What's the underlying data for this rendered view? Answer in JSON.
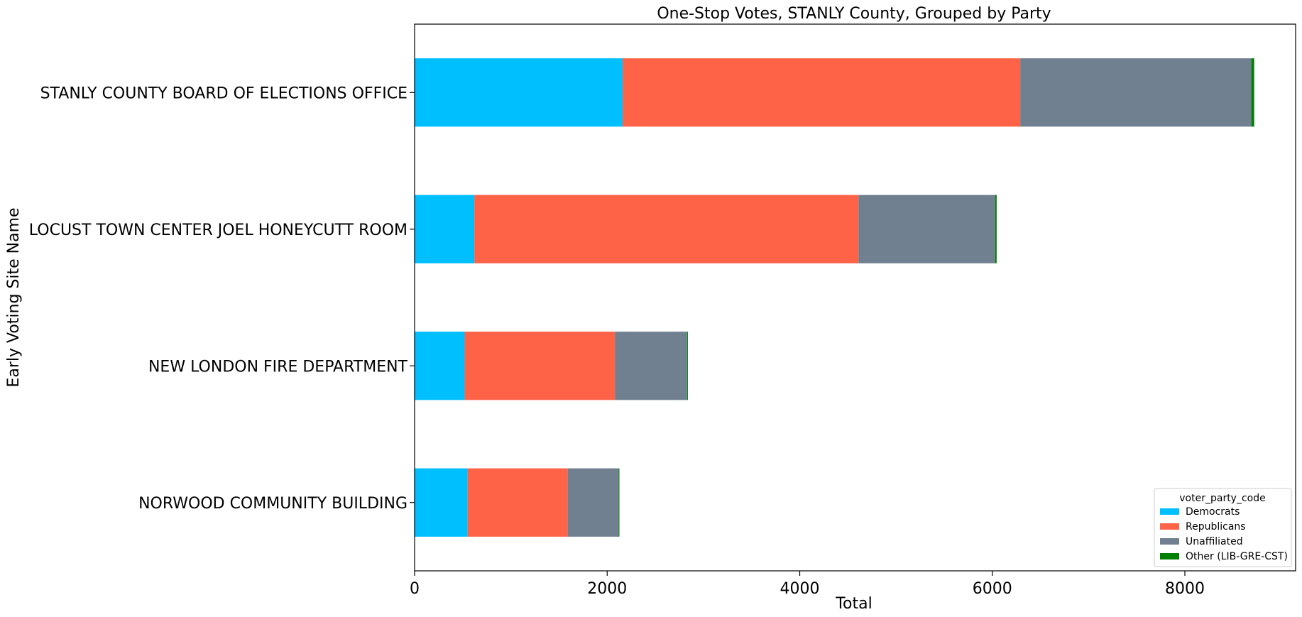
{
  "chart_data": {
    "type": "bar",
    "orientation": "horizontal",
    "stacked": true,
    "title": "One-Stop Votes, STANLY County, Grouped by Party",
    "xlabel": "Total",
    "ylabel": "Early Voting Site Name",
    "xlim": [
      0,
      9150
    ],
    "xticks": [
      0,
      2000,
      4000,
      6000,
      8000
    ],
    "grid": false,
    "legend_title": "voter_party_code",
    "legend_position": "lower-right",
    "categories": [
      "STANLY COUNTY BOARD OF ELECTIONS OFFICE",
      "LOCUST TOWN CENTER JOEL HONEYCUTT ROOM",
      "NEW LONDON FIRE DEPARTMENT",
      "NORWOOD COMMUNITY BUILDING"
    ],
    "series": [
      {
        "name": "Democrats",
        "color": "#00bfff",
        "values": [
          2160,
          620,
          520,
          550
        ]
      },
      {
        "name": "Republicans",
        "color": "#ff6347",
        "values": [
          4130,
          3990,
          1560,
          1040
        ]
      },
      {
        "name": "Unaffiliated",
        "color": "#708090",
        "values": [
          2400,
          1420,
          750,
          530
        ]
      },
      {
        "name": "Other (LIB-GRE-CST)",
        "color": "#008000",
        "values": [
          30,
          15,
          8,
          7
        ]
      }
    ]
  }
}
